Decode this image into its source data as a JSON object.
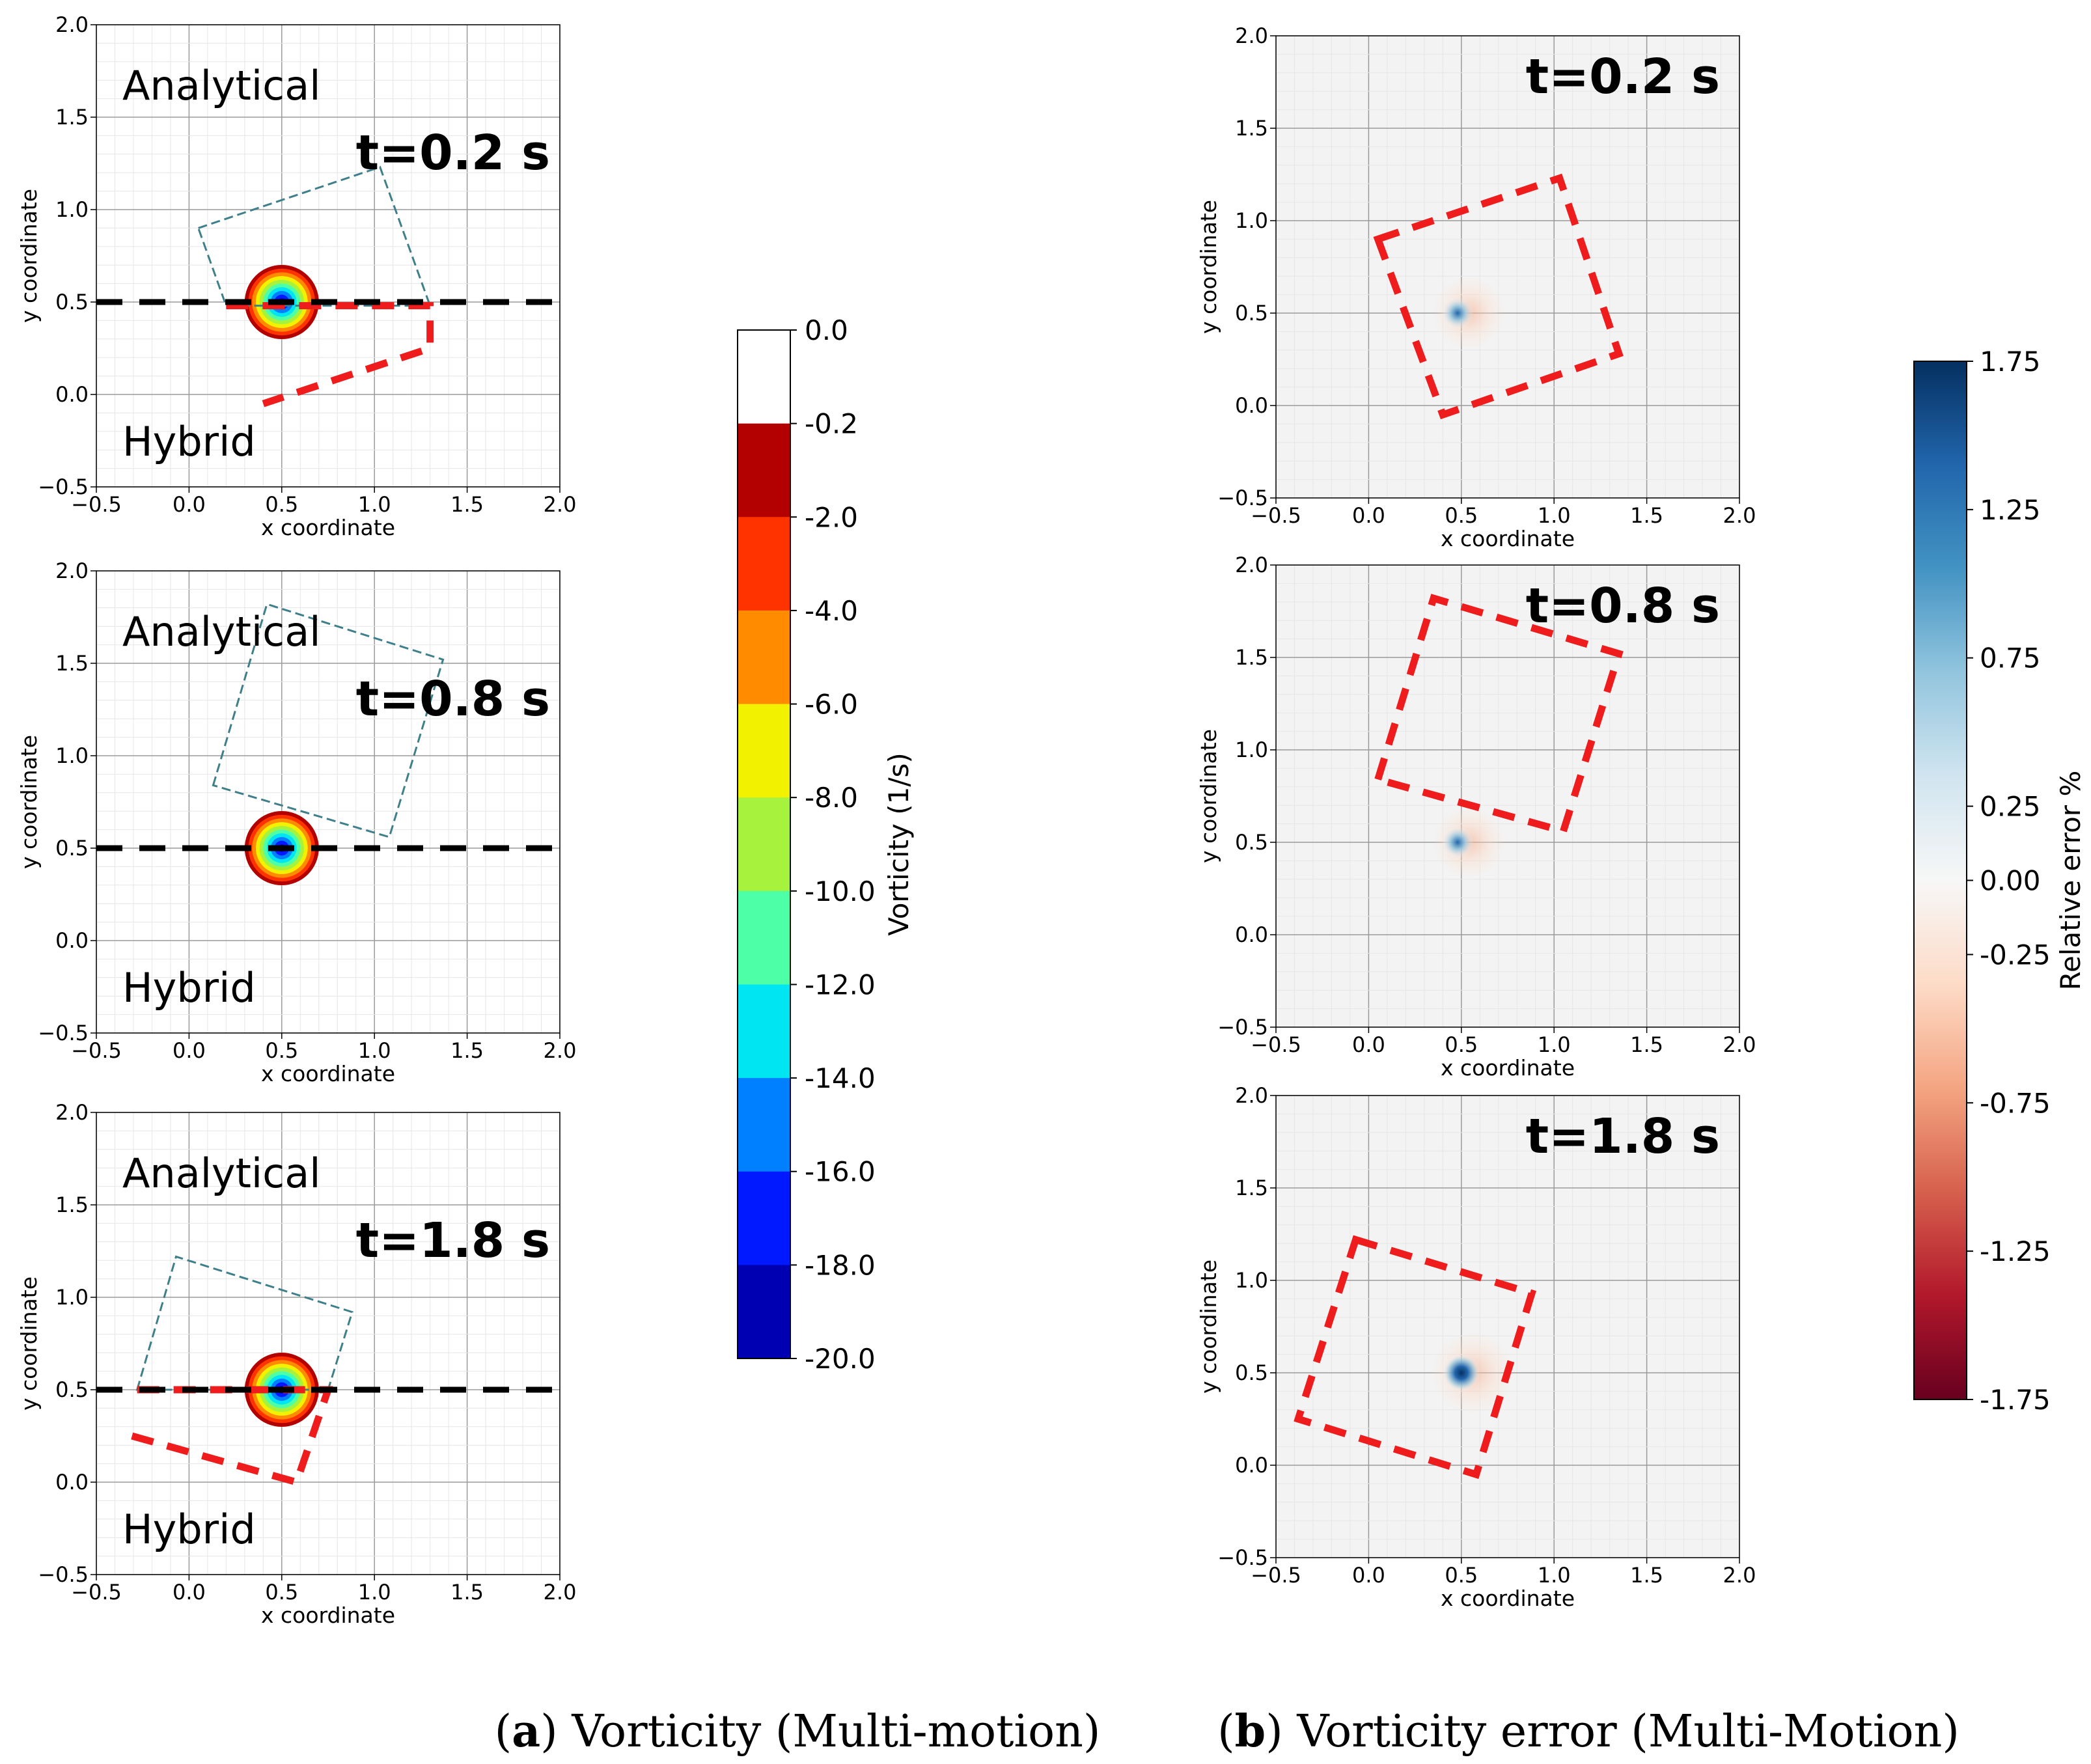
{
  "chart_data": [
    {
      "id": "a1",
      "type": "heatmap",
      "group": "a",
      "time_label": "t=0.2 s",
      "top_label": "Analytical",
      "bottom_label": "Hybrid",
      "xlabel": "x coordinate",
      "ylabel": "y coordinate",
      "xlim": [
        -0.5,
        2.0
      ],
      "ylim": [
        -0.5,
        2.0
      ],
      "xticks": [
        "−0.5",
        "0.0",
        "0.5",
        "1.0",
        "1.5",
        "2.0"
      ],
      "yticks": [
        "−0.5",
        "0.0",
        "0.5",
        "1.0",
        "1.5",
        "2.0"
      ],
      "vortex_center": [
        0.5,
        0.5
      ],
      "vortex_radius": 0.2,
      "analytical_box": [
        [
          0.05,
          0.9
        ],
        [
          1.03,
          1.23
        ],
        [
          1.3,
          0.48
        ],
        [
          0.2,
          0.48
        ]
      ],
      "hybrid_box": [
        [
          0.2,
          0.48
        ],
        [
          1.3,
          0.48
        ],
        [
          1.3,
          0.25
        ],
        [
          0.4,
          -0.05
        ]
      ],
      "cut_line_y": 0.5
    },
    {
      "id": "a2",
      "type": "heatmap",
      "group": "a",
      "time_label": "t=0.8 s",
      "top_label": "Analytical",
      "bottom_label": "Hybrid",
      "xlabel": "x coordinate",
      "ylabel": "y coordinate",
      "xlim": [
        -0.5,
        2.0
      ],
      "ylim": [
        -0.5,
        2.0
      ],
      "xticks": [
        "−0.5",
        "0.0",
        "0.5",
        "1.0",
        "1.5",
        "2.0"
      ],
      "yticks": [
        "−0.5",
        "0.0",
        "0.5",
        "1.0",
        "1.5",
        "2.0"
      ],
      "vortex_center": [
        0.5,
        0.5
      ],
      "vortex_radius": 0.2,
      "analytical_box": [
        [
          0.13,
          0.84
        ],
        [
          0.42,
          1.82
        ],
        [
          1.37,
          1.52
        ],
        [
          1.08,
          0.56
        ]
      ],
      "cut_line_y": 0.5
    },
    {
      "id": "a3",
      "type": "heatmap",
      "group": "a",
      "time_label": "t=1.8 s",
      "top_label": "Analytical",
      "bottom_label": "Hybrid",
      "xlabel": "x coordinate",
      "ylabel": "y coordinate",
      "xlim": [
        -0.5,
        2.0
      ],
      "ylim": [
        -0.5,
        2.0
      ],
      "xticks": [
        "−0.5",
        "0.0",
        "0.5",
        "1.0",
        "1.5",
        "2.0"
      ],
      "yticks": [
        "−0.5",
        "0.0",
        "0.5",
        "1.0",
        "1.5",
        "2.0"
      ],
      "vortex_center": [
        0.5,
        0.5
      ],
      "vortex_radius": 0.2,
      "analytical_box": [
        [
          -0.28,
          0.5
        ],
        [
          -0.07,
          1.22
        ],
        [
          0.88,
          0.92
        ],
        [
          0.75,
          0.5
        ]
      ],
      "hybrid_box": [
        [
          -0.28,
          0.5
        ],
        [
          0.75,
          0.5
        ],
        [
          0.58,
          0.0
        ],
        [
          -0.38,
          0.27
        ]
      ],
      "cut_line_y": 0.5
    },
    {
      "id": "b1",
      "type": "heatmap",
      "group": "b",
      "time_label": "t=0.2 s",
      "xlabel": "x coordinate",
      "ylabel": "y coordinate",
      "xlim": [
        -0.5,
        2.0
      ],
      "ylim": [
        -0.5,
        2.0
      ],
      "xticks": [
        "−0.5",
        "0.0",
        "0.5",
        "1.0",
        "1.5",
        "2.0"
      ],
      "yticks": [
        "−0.5",
        "0.0",
        "0.5",
        "1.0",
        "1.5",
        "2.0"
      ],
      "error_center": [
        0.48,
        0.5
      ],
      "error_scale": 0.55,
      "hybrid_box": [
        [
          0.05,
          0.9
        ],
        [
          1.03,
          1.23
        ],
        [
          1.35,
          0.28
        ],
        [
          0.4,
          -0.05
        ]
      ]
    },
    {
      "id": "b2",
      "type": "heatmap",
      "group": "b",
      "time_label": "t=0.8 s",
      "xlabel": "x coordinate",
      "ylabel": "y coordinate",
      "xlim": [
        -0.5,
        2.0
      ],
      "ylim": [
        -0.5,
        2.0
      ],
      "xticks": [
        "−0.5",
        "0.0",
        "0.5",
        "1.0",
        "1.5",
        "2.0"
      ],
      "yticks": [
        "−0.5",
        "0.0",
        "0.5",
        "1.0",
        "1.5",
        "2.0"
      ],
      "error_center": [
        0.48,
        0.5
      ],
      "error_scale": 0.55,
      "hybrid_box": [
        [
          0.05,
          0.84
        ],
        [
          0.35,
          1.82
        ],
        [
          1.35,
          1.52
        ],
        [
          1.05,
          0.56
        ]
      ]
    },
    {
      "id": "b3",
      "type": "heatmap",
      "group": "b",
      "time_label": "t=1.8 s",
      "xlabel": "x coordinate",
      "ylabel": "y coordinate",
      "xlim": [
        -0.5,
        2.0
      ],
      "ylim": [
        -0.5,
        2.0
      ],
      "xticks": [
        "−0.5",
        "0.0",
        "0.5",
        "1.0",
        "1.5",
        "2.0"
      ],
      "yticks": [
        "−0.5",
        "0.0",
        "0.5",
        "1.0",
        "1.5",
        "2.0"
      ],
      "error_center": [
        0.5,
        0.5
      ],
      "error_scale": 1.0,
      "hybrid_box": [
        [
          -0.07,
          1.22
        ],
        [
          0.88,
          0.93
        ],
        [
          0.58,
          -0.05
        ],
        [
          -0.38,
          0.25
        ]
      ]
    }
  ],
  "colorbars": {
    "vorticity": {
      "label": "Vorticity (1/s)",
      "ticks": [
        "0.0",
        "-0.2",
        "-2.0",
        "-4.0",
        "-6.0",
        "-8.0",
        "-10.0",
        "-12.0",
        "-14.0",
        "-16.0",
        "-18.0",
        "-20.0"
      ],
      "colors": [
        "#ffffff",
        "#b30000",
        "#ff3300",
        "#ff8c00",
        "#f2f200",
        "#a6f23c",
        "#4dffa6",
        "#00e5f2",
        "#0080ff",
        "#0019ff",
        "#0000b3"
      ]
    },
    "error": {
      "label": "Relative error %",
      "ticks": [
        "1.75",
        "1.25",
        "0.75",
        "0.25",
        "0.00",
        "-0.25",
        "-0.75",
        "-1.25",
        "-1.75"
      ],
      "tick_values": [
        1.75,
        1.25,
        0.75,
        0.25,
        0.0,
        -0.25,
        -0.75,
        -1.25,
        -1.75
      ],
      "range": [
        -1.75,
        1.75
      ],
      "gradient": [
        "#053061",
        "#2166ac",
        "#4393c3",
        "#92c5de",
        "#d1e5f0",
        "#f7f7f7",
        "#fddbc7",
        "#f4a582",
        "#d6604d",
        "#b2182b",
        "#67001f"
      ]
    }
  },
  "captions": {
    "a": {
      "letter": "a",
      "text": " Vorticity (Multi-motion)"
    },
    "b": {
      "letter": "b",
      "text": " Vorticity error (Multi-Motion)"
    }
  }
}
